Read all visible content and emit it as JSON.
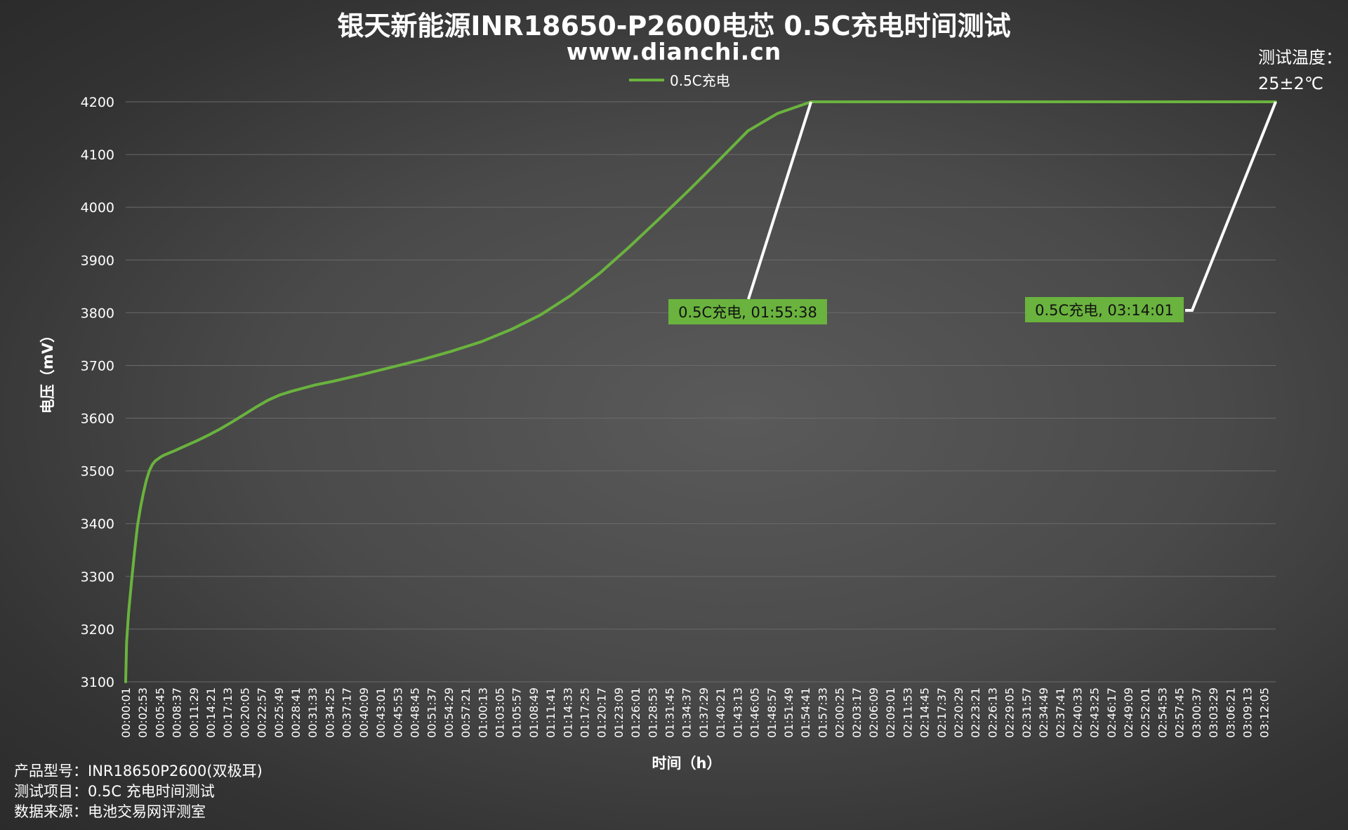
{
  "title": "银天新能源INR18650-P2600电芯 0.5C充电时间测试",
  "subtitle": "www.dianchi.cn",
  "temperature": {
    "label": "测试温度：",
    "value": "25±2℃"
  },
  "info": [
    {
      "key": "产品型号：",
      "value": "INR18650P2600(双极耳)"
    },
    {
      "key": "测试项目：",
      "value": "0.5C 充电时间测试"
    },
    {
      "key": "数据来源：",
      "value": "电池交易网评测室"
    }
  ],
  "colors": {
    "line": "#6ab33e",
    "label_bg": "#6ab33e",
    "grid": "#6a6a6a",
    "leader": "#ffffff"
  },
  "chart_data": {
    "type": "line",
    "title": "银天新能源INR18650-P2600电芯 0.5C充电时间测试",
    "xlabel": "时间（h）",
    "ylabel": "电压（mV）",
    "ylim": [
      3100,
      4200
    ],
    "yticks": [
      3100,
      3200,
      3300,
      3400,
      3500,
      3600,
      3700,
      3800,
      3900,
      4000,
      4100,
      4200
    ],
    "xticks": [
      "00:00:01",
      "00:02:53",
      "00:05:45",
      "00:08:37",
      "00:11:29",
      "00:14:21",
      "00:17:13",
      "00:20:05",
      "00:22:57",
      "00:25:49",
      "00:28:41",
      "00:31:33",
      "00:34:25",
      "00:37:17",
      "00:40:09",
      "00:43:01",
      "00:45:53",
      "00:48:45",
      "00:51:37",
      "00:54:29",
      "00:57:21",
      "01:00:13",
      "01:03:05",
      "01:05:57",
      "01:08:49",
      "01:11:41",
      "01:14:33",
      "01:17:25",
      "01:20:17",
      "01:23:09",
      "01:26:01",
      "01:28:53",
      "01:31:45",
      "01:34:37",
      "01:37:29",
      "01:40:21",
      "01:43:13",
      "01:46:05",
      "01:48:57",
      "01:51:49",
      "01:54:41",
      "01:57:33",
      "02:00:25",
      "02:03:17",
      "02:06:09",
      "02:09:01",
      "02:11:53",
      "02:14:45",
      "02:17:37",
      "02:20:29",
      "02:23:21",
      "02:26:13",
      "02:29:05",
      "02:31:57",
      "02:34:49",
      "02:37:41",
      "02:40:33",
      "02:43:25",
      "02:46:17",
      "02:49:09",
      "02:52:01",
      "02:54:53",
      "02:57:45",
      "03:00:37",
      "03:03:29",
      "03:06:21",
      "03:09:13",
      "03:12:05"
    ],
    "legend": {
      "position": "top-center"
    },
    "grid": true,
    "series": [
      {
        "name": "0.5C充电",
        "x": [
          "00:00:01",
          "00:00:10",
          "00:00:30",
          "00:01:00",
          "00:01:30",
          "00:02:00",
          "00:02:30",
          "00:03:00",
          "00:03:30",
          "00:04:00",
          "00:04:30",
          "00:05:00",
          "00:05:30",
          "00:06:00",
          "00:06:30",
          "00:08:00",
          "00:10:00",
          "00:12:00",
          "00:14:00",
          "00:16:00",
          "00:18:00",
          "00:20:00",
          "00:22:00",
          "00:24:00",
          "00:26:00",
          "00:28:00",
          "00:30:00",
          "00:32:00",
          "00:35:00",
          "00:40:00",
          "00:45:00",
          "00:50:00",
          "00:55:00",
          "01:00:00",
          "01:05:00",
          "01:10:00",
          "01:15:00",
          "01:20:00",
          "01:25:00",
          "01:30:00",
          "01:35:00",
          "01:40:00",
          "01:45:00",
          "01:50:00",
          "01:55:38",
          "03:14:01"
        ],
        "values": [
          3100,
          3175,
          3230,
          3290,
          3345,
          3395,
          3430,
          3458,
          3482,
          3500,
          3512,
          3519,
          3523,
          3527,
          3530,
          3537,
          3547,
          3557,
          3568,
          3580,
          3593,
          3607,
          3621,
          3634,
          3644,
          3651,
          3657,
          3663,
          3670,
          3683,
          3697,
          3711,
          3727,
          3745,
          3768,
          3796,
          3832,
          3875,
          3925,
          3978,
          4032,
          4088,
          4145,
          4178,
          4200,
          4200
        ]
      }
    ],
    "annotations": [
      {
        "text": "0.5C充电, 01:55:38",
        "x": "01:55:38",
        "y": 4200
      },
      {
        "text": "0.5C充电, 03:14:01",
        "x": "03:14:01",
        "y": 4200
      }
    ]
  }
}
